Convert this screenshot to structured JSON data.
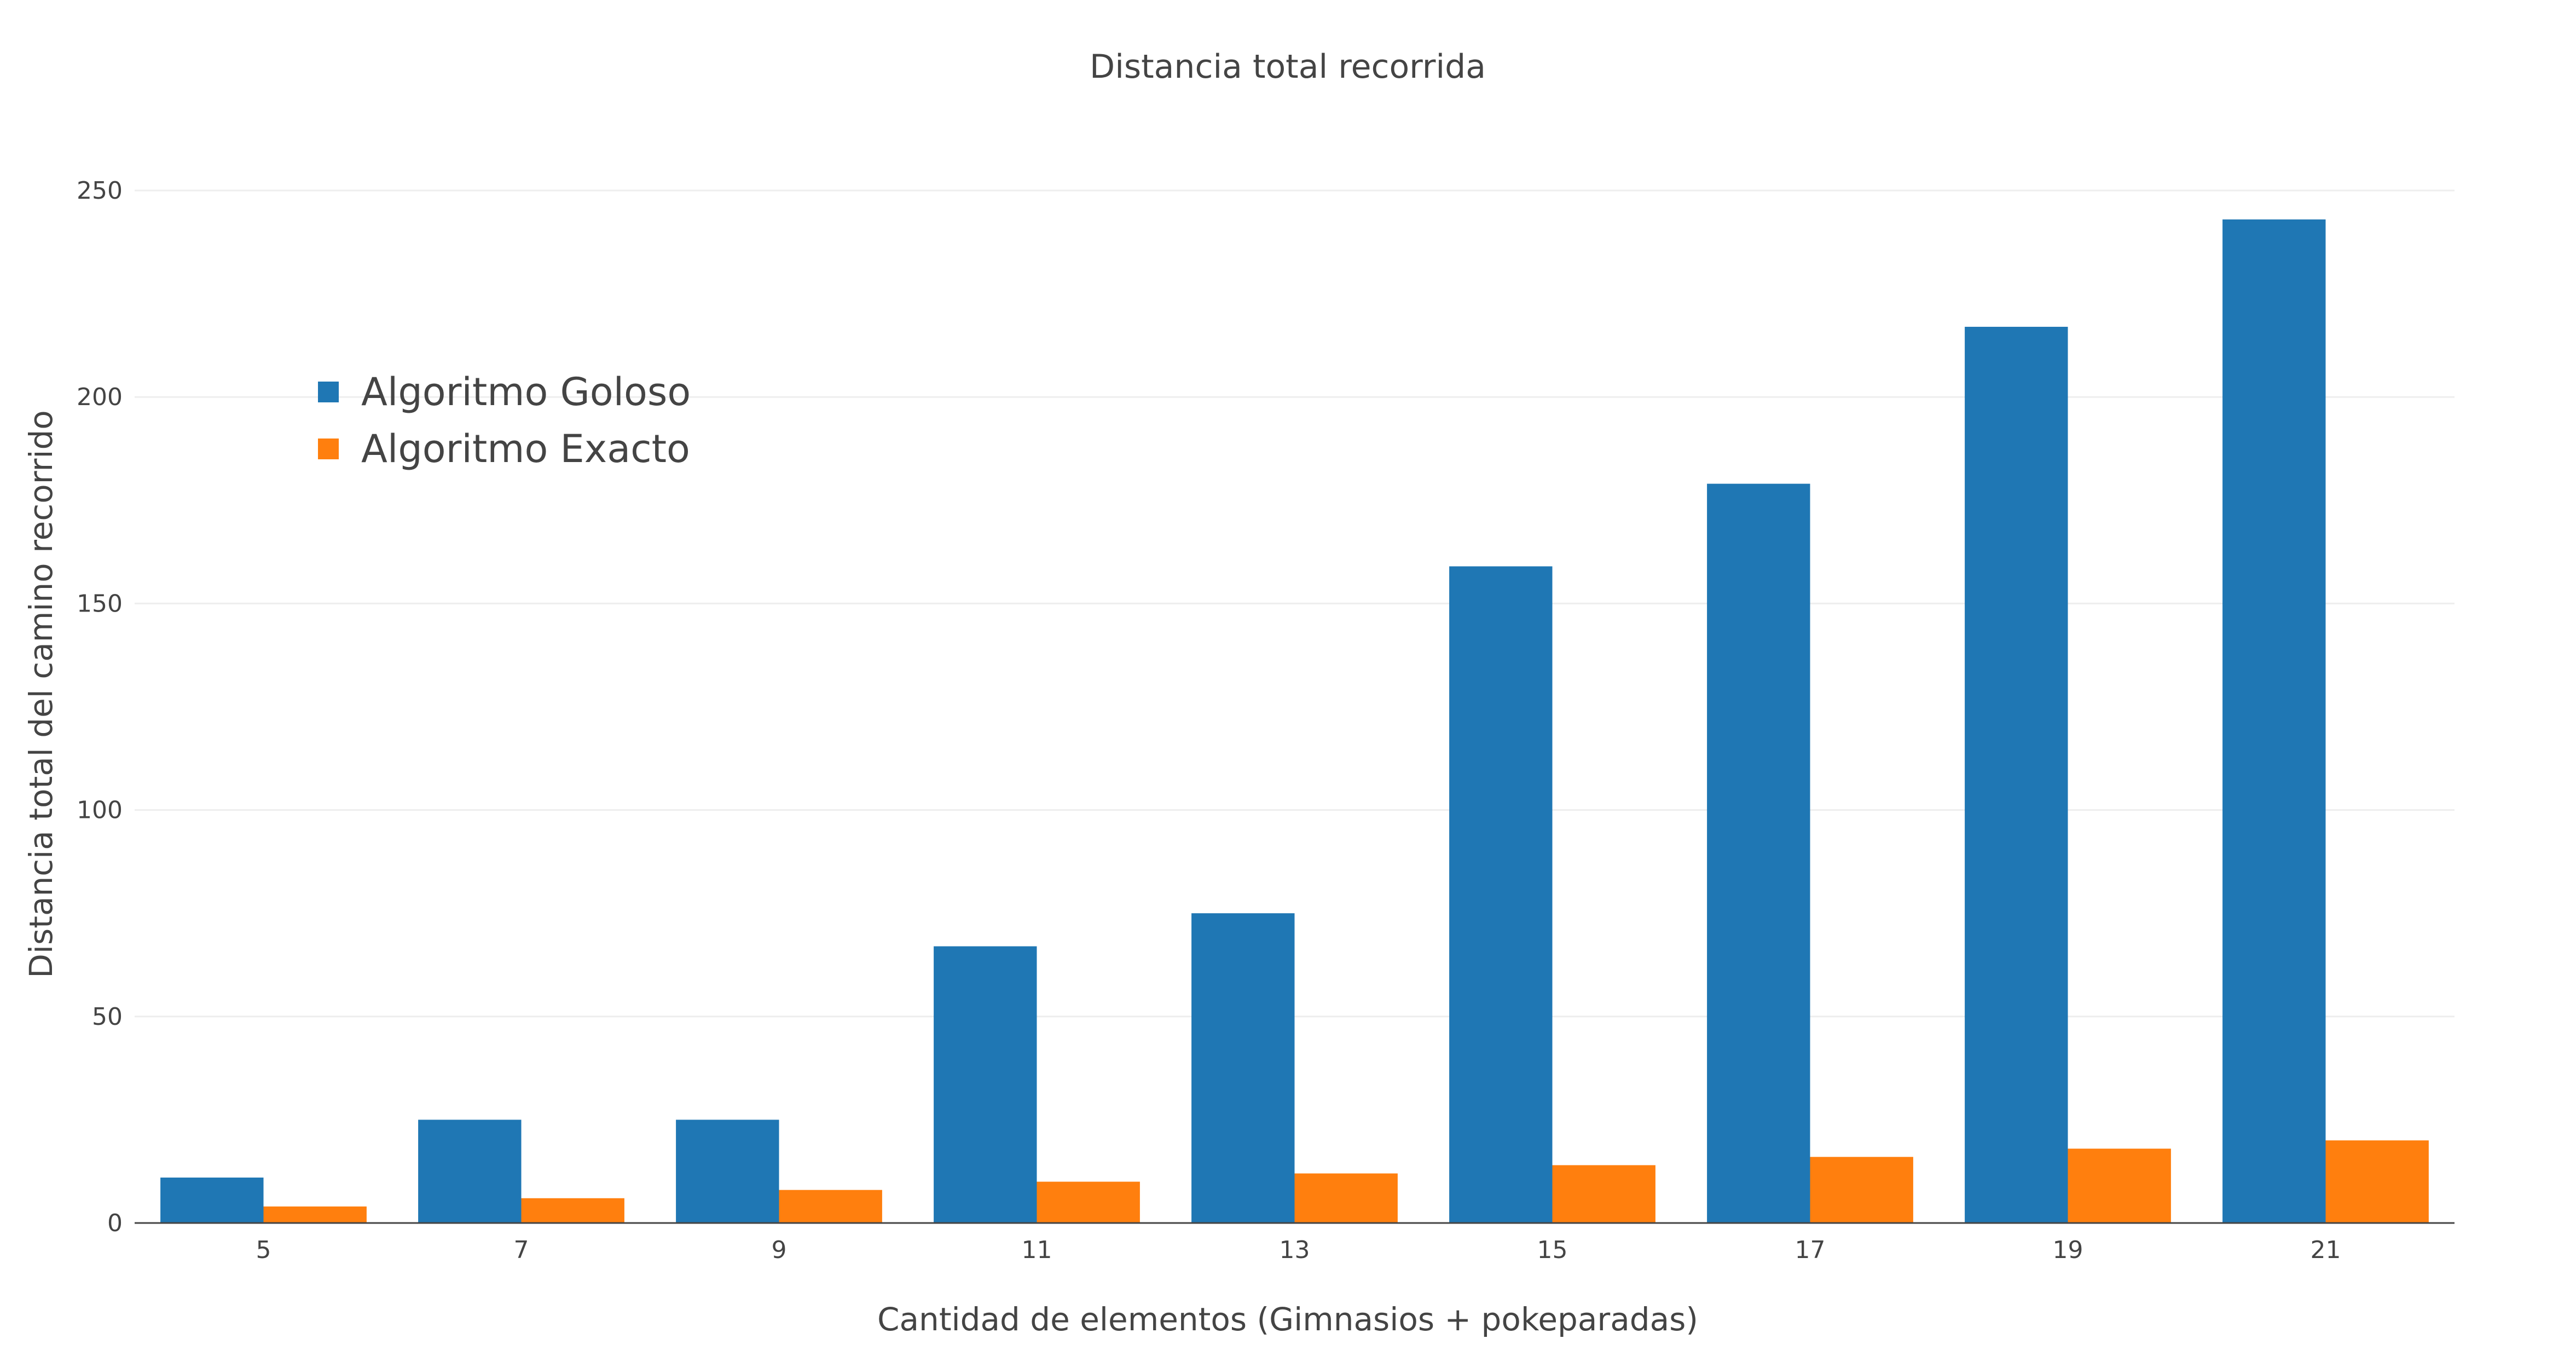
{
  "chart_data": {
    "type": "bar",
    "title": "Distancia total recorrida",
    "xlabel": "Cantidad de elementos (Gimnasios + pokeparadas)",
    "ylabel": "Distancia total del camino recorrido",
    "categories": [
      "5",
      "7",
      "9",
      "11",
      "13",
      "15",
      "17",
      "19",
      "21"
    ],
    "series": [
      {
        "name": "Algoritmo Goloso",
        "color": "#1f77b4",
        "values": [
          11,
          25,
          25,
          67,
          75,
          159,
          179,
          217,
          243
        ]
      },
      {
        "name": "Algoritmo Exacto",
        "color": "#ff7f0e",
        "values": [
          4,
          6,
          8,
          10,
          12,
          14,
          16,
          18,
          20
        ]
      }
    ],
    "ylim": [
      0,
      250
    ],
    "yticks": [
      "0",
      "50",
      "100",
      "150",
      "200",
      "250"
    ],
    "grid": true,
    "legend_position": "top-left"
  }
}
